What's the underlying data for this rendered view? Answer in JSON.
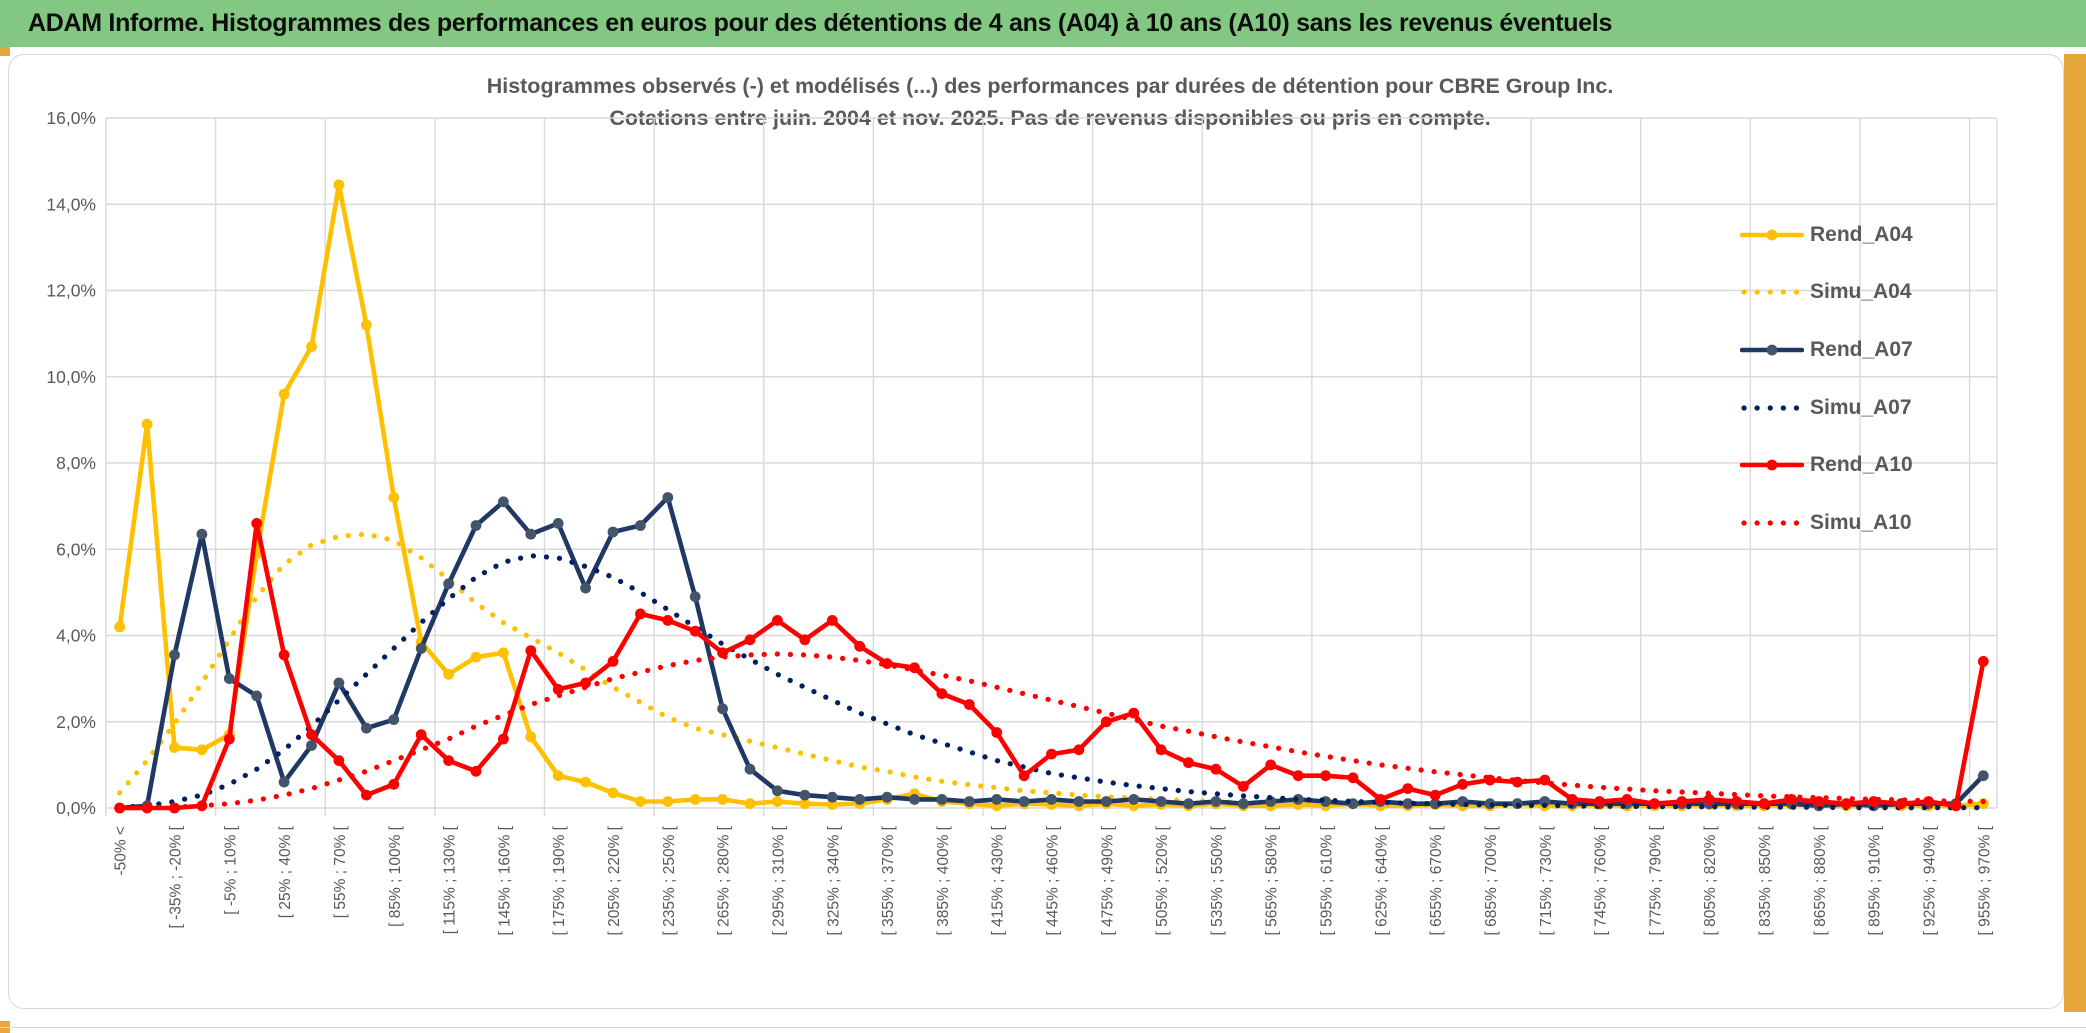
{
  "header": {
    "title": "ADAM Informe. Histogrammes des performances en euros pour des détentions de 4 ans (A04) à 10 ans (A10) sans les revenus éventuels",
    "bg_color": "#82C882"
  },
  "page_accents": {
    "gold_color": "#E6A73D",
    "grid_color": "#D9D9D9",
    "text_gray": "#595959"
  },
  "chart_data": {
    "type": "line",
    "title": "Histogrammes observés (-) et modélisés (...) des performances par durées de détention pour CBRE Group Inc.",
    "subtitle": "Cotations entre juin. 2004 et nov. 2025. Pas de revenus disponibles ou pris en compte.",
    "xlabel": "",
    "ylabel": "",
    "ylim": [
      0,
      16
    ],
    "grid": true,
    "legend_position": "right",
    "y_tick_labels": [
      "0,0%",
      "2,0%",
      "4,0%",
      "6,0%",
      "8,0%",
      "10,0%",
      "12,0%",
      "14,0%",
      "16,0%"
    ],
    "x_tick_labels": [
      "-50% <",
      "[ -35% ; -20% [",
      "[ -5% ; 10% [",
      "[ 25% ; 40% [",
      "[ 55% ; 70% [",
      "[ 85% ; 100% [",
      "[ 115% ; 130% [",
      "[ 145% ; 160% [",
      "[ 175% ; 190% [",
      "[ 205% ; 220% [",
      "[ 235% ; 250% [",
      "[ 265% ; 280% [",
      "[ 295% ; 310% [",
      "[ 325% ; 340% [",
      "[ 355% ; 370% [",
      "[ 385% ; 400% [",
      "[ 415% ; 430% [",
      "[ 445% ; 460% [",
      "[ 475% ; 490% [",
      "[ 505% ; 520% [",
      "[ 535% ; 550% [",
      "[ 565% ; 580% [",
      "[ 595% ; 610% [",
      "[ 625% ; 640% [",
      "[ 655% ; 670% [",
      "[ 685% ; 700% [",
      "[ 715% ; 730% [",
      "[ 745% ; 760% [",
      "[ 775% ; 790% [",
      "[ 805% ; 820% [",
      "[ 835% ; 850% [",
      "[ 865% ; 880% [",
      "[ 895% ; 910% [",
      "[ 925% ; 940% [",
      "[ 955% ; 970% ["
    ],
    "x_note": "69 bins of 15% width; axis labels shown for every other bin; values are frequencies in %",
    "series": [
      {
        "name": "Rend_A04",
        "style": "solid",
        "color": "#FFC000",
        "marker_color": "#FFC000",
        "values": [
          4.2,
          8.9,
          1.4,
          1.35,
          1.7,
          5.9,
          9.6,
          10.7,
          14.45,
          11.2,
          7.2,
          3.85,
          3.1,
          3.5,
          3.6,
          1.65,
          0.75,
          0.6,
          0.35,
          0.15,
          0.15,
          0.2,
          0.2,
          0.1,
          0.15,
          0.1,
          0.08,
          0.1,
          0.2,
          0.33,
          0.15,
          0.1,
          0.05,
          0.1,
          0.08,
          0.05,
          0.1,
          0.05,
          0.08,
          0.05,
          0.1,
          0.05,
          0.05,
          0.08,
          0.05,
          0.1,
          0.05,
          0.05,
          0.08,
          0.05,
          0.05,
          0.1,
          0.05,
          0.05,
          0.08,
          0.05,
          0.05,
          0.05,
          0.08,
          0.05,
          0.05,
          0.08,
          0.05,
          0.05,
          0.08,
          0.05,
          0.05,
          0.05,
          0.1
        ]
      },
      {
        "name": "Simu_A04",
        "style": "dotted",
        "color": "#FFC000",
        "values": [
          0.35,
          1.1,
          1.95,
          2.9,
          3.9,
          4.9,
          5.65,
          6.1,
          6.3,
          6.35,
          6.2,
          5.8,
          5.3,
          4.75,
          4.3,
          3.95,
          3.6,
          3.2,
          2.8,
          2.45,
          2.1,
          1.85,
          1.7,
          1.55,
          1.4,
          1.25,
          1.1,
          0.95,
          0.85,
          0.72,
          0.62,
          0.54,
          0.47,
          0.4,
          0.35,
          0.3,
          0.26,
          0.23,
          0.2,
          0.17,
          0.15,
          0.13,
          0.11,
          0.1,
          0.09,
          0.08,
          0.07,
          0.07,
          0.06,
          0.05,
          0.05,
          0.04,
          0.04,
          0.04,
          0.03,
          0.03,
          0.03,
          0.03,
          0.02,
          0.02,
          0.02,
          0.02,
          0.02,
          0.02,
          0.01,
          0.01,
          0.01,
          0.01,
          0.01
        ]
      },
      {
        "name": "Rend_A07",
        "style": "solid",
        "color": "#1F3864",
        "marker_color": "#44546A",
        "values": [
          0,
          0.05,
          3.55,
          6.35,
          3.0,
          2.6,
          0.6,
          1.45,
          2.9,
          1.85,
          2.05,
          3.7,
          5.2,
          6.55,
          7.1,
          6.35,
          6.6,
          5.1,
          6.4,
          6.55,
          7.2,
          4.9,
          2.3,
          0.9,
          0.4,
          0.3,
          0.25,
          0.2,
          0.25,
          0.2,
          0.2,
          0.15,
          0.2,
          0.15,
          0.2,
          0.15,
          0.15,
          0.2,
          0.15,
          0.1,
          0.15,
          0.1,
          0.15,
          0.2,
          0.15,
          0.1,
          0.15,
          0.1,
          0.1,
          0.15,
          0.1,
          0.1,
          0.15,
          0.1,
          0.1,
          0.1,
          0.1,
          0.1,
          0.1,
          0.1,
          0.1,
          0.1,
          0.05,
          0.1,
          0.05,
          0.1,
          0.1,
          0.1,
          0.75
        ]
      },
      {
        "name": "Simu_A07",
        "style": "dotted",
        "color": "#002060",
        "values": [
          0.02,
          0.05,
          0.15,
          0.3,
          0.55,
          0.9,
          1.35,
          1.9,
          2.5,
          3.1,
          3.7,
          4.3,
          4.85,
          5.35,
          5.7,
          5.85,
          5.8,
          5.6,
          5.35,
          5.0,
          4.6,
          4.2,
          3.8,
          3.45,
          3.1,
          2.8,
          2.5,
          2.2,
          1.95,
          1.7,
          1.5,
          1.3,
          1.1,
          0.95,
          0.8,
          0.7,
          0.6,
          0.52,
          0.45,
          0.38,
          0.33,
          0.28,
          0.24,
          0.2,
          0.18,
          0.15,
          0.13,
          0.11,
          0.1,
          0.08,
          0.07,
          0.06,
          0.06,
          0.05,
          0.04,
          0.04,
          0.03,
          0.03,
          0.03,
          0.02,
          0.02,
          0.02,
          0.02,
          0.01,
          0.01,
          0.01,
          0.01,
          0.01,
          0.01
        ]
      },
      {
        "name": "Rend_A10",
        "style": "solid",
        "color": "#FF0000",
        "marker_color": "#FF0000",
        "values": [
          0,
          0,
          0,
          0.05,
          1.6,
          6.6,
          3.55,
          1.7,
          1.1,
          0.3,
          0.55,
          1.7,
          1.1,
          0.85,
          1.6,
          3.65,
          2.75,
          2.9,
          3.4,
          4.5,
          4.35,
          4.1,
          3.6,
          3.9,
          4.35,
          3.9,
          4.35,
          3.75,
          3.35,
          3.25,
          2.65,
          2.4,
          1.75,
          0.75,
          1.25,
          1.35,
          2.0,
          2.2,
          1.35,
          1.05,
          0.9,
          0.5,
          1.0,
          0.75,
          0.75,
          0.7,
          0.2,
          0.45,
          0.3,
          0.55,
          0.65,
          0.6,
          0.65,
          0.2,
          0.15,
          0.2,
          0.1,
          0.15,
          0.2,
          0.15,
          0.1,
          0.2,
          0.15,
          0.1,
          0.15,
          0.1,
          0.15,
          0.05,
          3.4
        ]
      },
      {
        "name": "Simu_A10",
        "style": "dotted",
        "color": "#FF0000",
        "values": [
          0,
          0.01,
          0.02,
          0.05,
          0.1,
          0.18,
          0.3,
          0.45,
          0.65,
          0.85,
          1.1,
          1.35,
          1.6,
          1.9,
          2.15,
          2.4,
          2.6,
          2.8,
          3.0,
          3.15,
          3.3,
          3.42,
          3.5,
          3.55,
          3.57,
          3.55,
          3.5,
          3.42,
          3.32,
          3.2,
          3.08,
          2.95,
          2.8,
          2.65,
          2.5,
          2.35,
          2.2,
          2.05,
          1.9,
          1.78,
          1.65,
          1.53,
          1.42,
          1.3,
          1.2,
          1.1,
          1.0,
          0.92,
          0.84,
          0.77,
          0.7,
          0.64,
          0.58,
          0.53,
          0.48,
          0.44,
          0.4,
          0.37,
          0.34,
          0.31,
          0.28,
          0.26,
          0.24,
          0.22,
          0.2,
          0.19,
          0.17,
          0.16,
          0.15
        ]
      }
    ]
  }
}
